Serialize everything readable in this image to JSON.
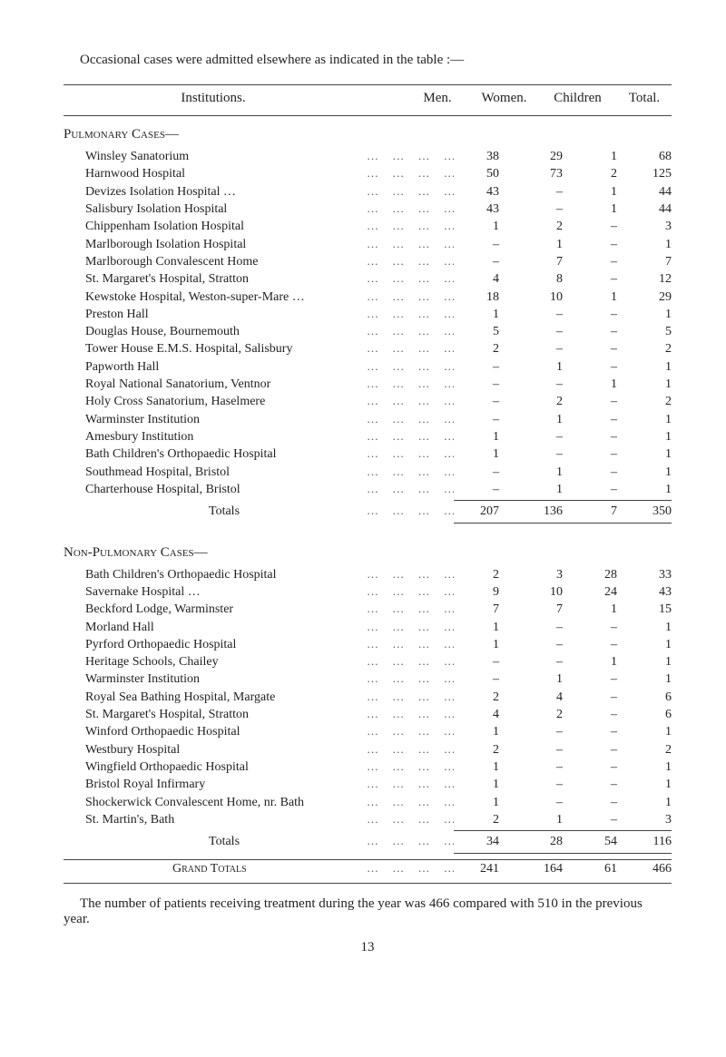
{
  "intro": "Occasional cases were admitted elsewhere as indicated in the table :—",
  "headers": {
    "institutions": "Institutions.",
    "men": "Men.",
    "women": "Women.",
    "children": "Children",
    "total": "Total."
  },
  "sections": [
    {
      "title": "Pulmonary Cases—",
      "rows": [
        {
          "label": "Winsley Sanatorium",
          "men": "38",
          "women": "29",
          "children": "1",
          "total": "68"
        },
        {
          "label": "Harnwood Hospital",
          "men": "50",
          "women": "73",
          "children": "2",
          "total": "125"
        },
        {
          "label": "Devizes Isolation Hospital …",
          "men": "43",
          "women": "–",
          "children": "1",
          "total": "44"
        },
        {
          "label": "Salisbury Isolation Hospital",
          "men": "43",
          "women": "–",
          "children": "1",
          "total": "44"
        },
        {
          "label": "Chippenham Isolation Hospital",
          "men": "1",
          "women": "2",
          "children": "–",
          "total": "3"
        },
        {
          "label": "Marlborough Isolation Hospital",
          "men": "–",
          "women": "1",
          "children": "–",
          "total": "1"
        },
        {
          "label": "Marlborough Convalescent Home",
          "men": "–",
          "women": "7",
          "children": "–",
          "total": "7"
        },
        {
          "label": "St. Margaret's Hospital, Stratton",
          "men": "4",
          "women": "8",
          "children": "–",
          "total": "12"
        },
        {
          "label": "Kewstoke Hospital, Weston-super-Mare …",
          "men": "18",
          "women": "10",
          "children": "1",
          "total": "29"
        },
        {
          "label": "Preston Hall",
          "men": "1",
          "women": "–",
          "children": "–",
          "total": "1"
        },
        {
          "label": "Douglas House, Bournemouth",
          "men": "5",
          "women": "–",
          "children": "–",
          "total": "5"
        },
        {
          "label": "Tower House E.M.S. Hospital, Salisbury",
          "men": "2",
          "women": "–",
          "children": "–",
          "total": "2"
        },
        {
          "label": "Papworth Hall",
          "men": "–",
          "women": "1",
          "children": "–",
          "total": "1"
        },
        {
          "label": "Royal National Sanatorium, Ventnor",
          "men": "–",
          "women": "–",
          "children": "1",
          "total": "1"
        },
        {
          "label": "Holy Cross Sanatorium, Haselmere",
          "men": "–",
          "women": "2",
          "children": "–",
          "total": "2"
        },
        {
          "label": "Warminster Institution",
          "men": "–",
          "women": "1",
          "children": "–",
          "total": "1"
        },
        {
          "label": "Amesbury Institution",
          "men": "1",
          "women": "–",
          "children": "–",
          "total": "1"
        },
        {
          "label": "Bath Children's Orthopaedic Hospital",
          "men": "1",
          "women": "–",
          "children": "–",
          "total": "1"
        },
        {
          "label": "Southmead Hospital, Bristol",
          "men": "–",
          "women": "1",
          "children": "–",
          "total": "1"
        },
        {
          "label": "Charterhouse Hospital, Bristol",
          "men": "–",
          "women": "1",
          "children": "–",
          "total": "1"
        }
      ],
      "totals": {
        "label": "Totals",
        "men": "207",
        "women": "136",
        "children": "7",
        "total": "350"
      }
    },
    {
      "title": "Non-Pulmonary Cases—",
      "rows": [
        {
          "label": "Bath Children's Orthopaedic Hospital",
          "men": "2",
          "women": "3",
          "children": "28",
          "total": "33"
        },
        {
          "label": "Savernake Hospital …",
          "men": "9",
          "women": "10",
          "children": "24",
          "total": "43"
        },
        {
          "label": "Beckford Lodge, Warminster",
          "men": "7",
          "women": "7",
          "children": "1",
          "total": "15"
        },
        {
          "label": "Morland Hall",
          "men": "1",
          "women": "–",
          "children": "–",
          "total": "1"
        },
        {
          "label": "Pyrford Orthopaedic Hospital",
          "men": "1",
          "women": "–",
          "children": "–",
          "total": "1"
        },
        {
          "label": "Heritage Schools, Chailey",
          "men": "–",
          "women": "–",
          "children": "1",
          "total": "1"
        },
        {
          "label": "Warminster Institution",
          "men": "–",
          "women": "1",
          "children": "–",
          "total": "1"
        },
        {
          "label": "Royal Sea Bathing Hospital, Margate",
          "men": "2",
          "women": "4",
          "children": "–",
          "total": "6"
        },
        {
          "label": "St. Margaret's Hospital, Stratton",
          "men": "4",
          "women": "2",
          "children": "–",
          "total": "6"
        },
        {
          "label": "Winford Orthopaedic Hospital",
          "men": "1",
          "women": "–",
          "children": "–",
          "total": "1"
        },
        {
          "label": "Westbury Hospital",
          "men": "2",
          "women": "–",
          "children": "–",
          "total": "2"
        },
        {
          "label": "Wingfield Orthopaedic Hospital",
          "men": "1",
          "women": "–",
          "children": "–",
          "total": "1"
        },
        {
          "label": "Bristol Royal Infirmary",
          "men": "1",
          "women": "–",
          "children": "–",
          "total": "1"
        },
        {
          "label": "Shockerwick Convalescent Home, nr. Bath",
          "men": "1",
          "women": "–",
          "children": "–",
          "total": "1"
        },
        {
          "label": "St. Martin's, Bath",
          "men": "2",
          "women": "1",
          "children": "–",
          "total": "3"
        }
      ],
      "totals": {
        "label": "Totals",
        "men": "34",
        "women": "28",
        "children": "54",
        "total": "116"
      }
    }
  ],
  "grand": {
    "label": "Grand Totals",
    "men": "241",
    "women": "164",
    "children": "61",
    "total": "466"
  },
  "footnote": "The number of patients receiving treatment during the year was 466 compared with 510 in the previous year.",
  "pagenum": "13",
  "leaders": "…   …   …   …   …   …   …"
}
